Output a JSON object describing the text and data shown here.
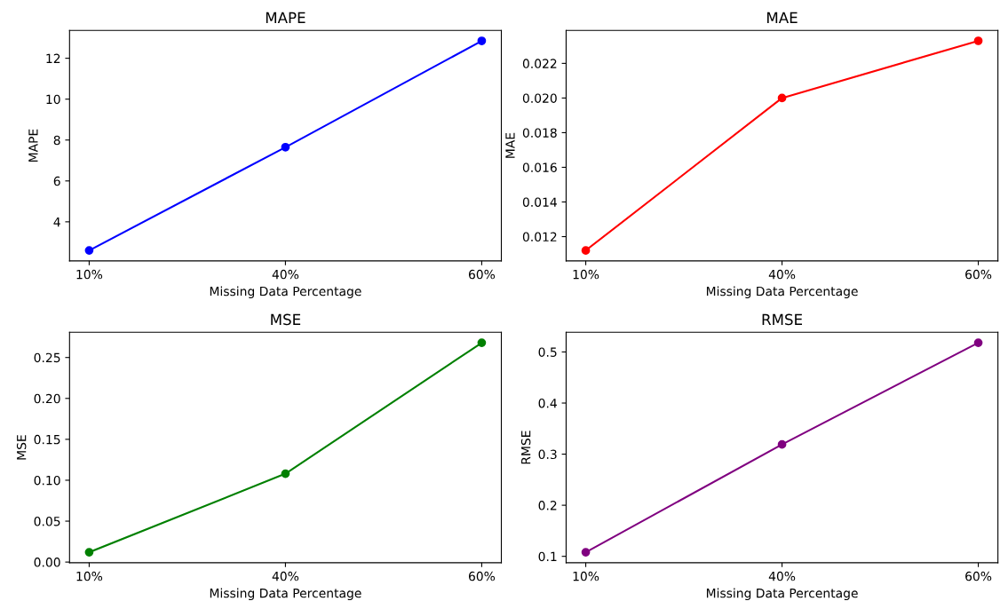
{
  "chart_data": [
    {
      "type": "line",
      "title": "MAPE",
      "xlabel": "Missing Data Percentage",
      "ylabel": "MAPE",
      "categories": [
        "10%",
        "40%",
        "60%"
      ],
      "series": [
        {
          "color": "#0000ff",
          "values": [
            2.6,
            7.65,
            12.85
          ]
        }
      ],
      "ylim": [
        2.09,
        13.36
      ],
      "yticks": [
        4,
        6,
        8,
        10,
        12
      ],
      "marker": "circle",
      "line_style": "solid"
    },
    {
      "type": "line",
      "title": "MAE",
      "xlabel": "Missing Data Percentage",
      "ylabel": "MAE",
      "categories": [
        "10%",
        "40%",
        "60%"
      ],
      "series": [
        {
          "color": "#ff0000",
          "values": [
            0.0112,
            0.02,
            0.0233
          ]
        }
      ],
      "ylim": [
        0.0106,
        0.0239
      ],
      "yticks": [
        {
          "value": 0.012,
          "label": "0.012"
        },
        {
          "value": 0.014,
          "label": "0.014"
        },
        {
          "value": 0.016,
          "label": "0.016"
        },
        {
          "value": 0.018,
          "label": "0.018"
        },
        {
          "value": 0.02,
          "label": "0.020"
        },
        {
          "value": 0.022,
          "label": "0.022"
        }
      ],
      "marker": "circle",
      "line_style": "solid"
    },
    {
      "type": "line",
      "title": "MSE",
      "xlabel": "Missing Data Percentage",
      "ylabel": "MSE",
      "categories": [
        "10%",
        "40%",
        "60%"
      ],
      "series": [
        {
          "color": "#008000",
          "values": [
            0.012,
            0.108,
            0.268
          ]
        }
      ],
      "ylim": [
        -0.0008,
        0.2808
      ],
      "yticks": [
        {
          "value": 0,
          "label": "0.00"
        },
        {
          "value": 0.05,
          "label": "0.05"
        },
        {
          "value": 0.1,
          "label": "0.10"
        },
        {
          "value": 0.15,
          "label": "0.15"
        },
        {
          "value": 0.2,
          "label": "0.20"
        },
        {
          "value": 0.25,
          "label": "0.25"
        }
      ],
      "marker": "circle",
      "line_style": "solid"
    },
    {
      "type": "line",
      "title": "RMSE",
      "xlabel": "Missing Data Percentage",
      "ylabel": "RMSE",
      "categories": [
        "10%",
        "40%",
        "60%"
      ],
      "series": [
        {
          "color": "#800080",
          "values": [
            0.108,
            0.319,
            0.518
          ]
        }
      ],
      "ylim": [
        0.0875,
        0.5385
      ],
      "yticks": [
        0.1,
        0.2,
        0.3,
        0.4,
        0.5
      ],
      "marker": "circle",
      "line_style": "solid"
    }
  ]
}
